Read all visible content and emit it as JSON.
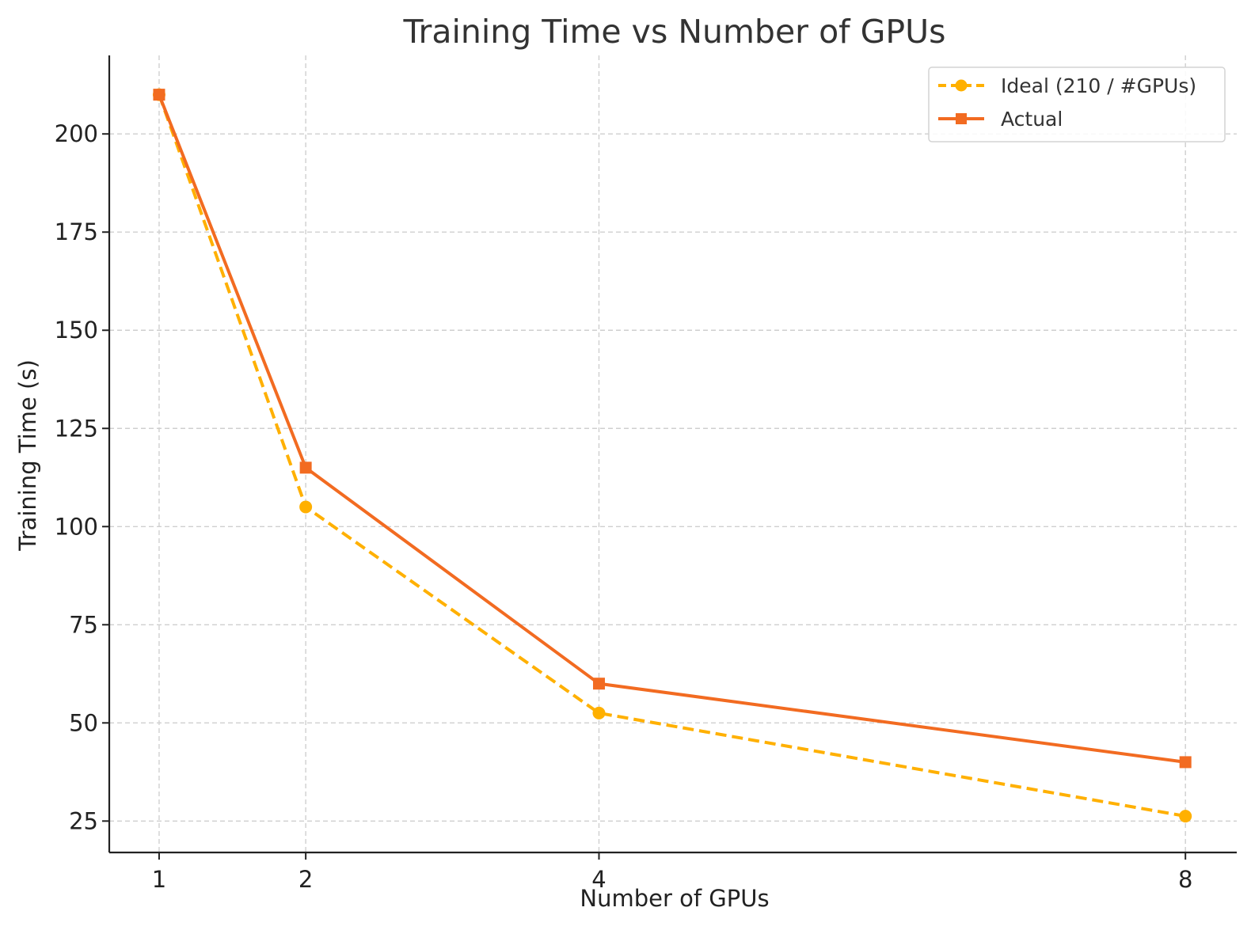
{
  "chart_data": {
    "type": "line",
    "title": "Training Time vs Number of GPUs",
    "xlabel": "Number of GPUs",
    "ylabel": "Training Time (s)",
    "x": [
      1,
      2,
      4,
      8
    ],
    "x_ticks": [
      "1",
      "2",
      "4",
      "8"
    ],
    "y_ticks": [
      25,
      50,
      75,
      100,
      125,
      150,
      175,
      200
    ],
    "ylim": [
      17,
      220
    ],
    "xlim": [
      0.66,
      8.35
    ],
    "grid": true,
    "legend_position": "top-right",
    "series": [
      {
        "name": "Ideal (210 / #GPUs)",
        "values": [
          210,
          105,
          52.5,
          26.25
        ],
        "color": "#ffb000",
        "line_style": "dashed",
        "marker": "circle"
      },
      {
        "name": "Actual",
        "values": [
          210,
          115,
          60,
          40
        ],
        "color": "#f26b21",
        "line_style": "solid",
        "marker": "square"
      }
    ]
  }
}
